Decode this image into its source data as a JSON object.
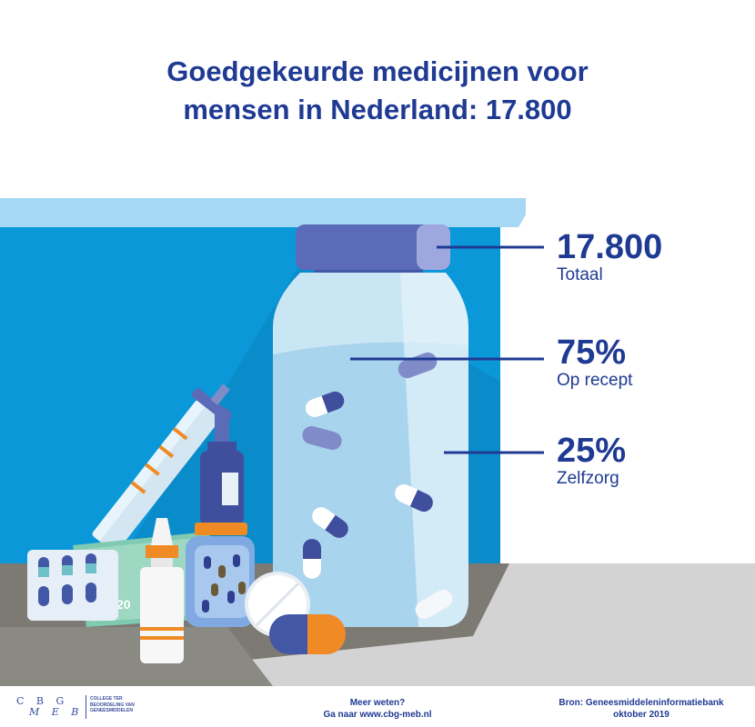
{
  "title": {
    "line1": "Goedgekeurde medicijnen voor",
    "line2": "mensen in Nederland: 17.800"
  },
  "stats": [
    {
      "value": "17.800",
      "label": "Totaal"
    },
    {
      "value": "75%",
      "label": "Op recept"
    },
    {
      "value": "25%",
      "label": "Zelfzorg"
    }
  ],
  "colors": {
    "accent": "#1f3a93",
    "wall": "#0a98d8",
    "shelf": "#a6d8f4",
    "floor": "#d4d4d4",
    "orange": "#f08a24"
  },
  "illustration": {
    "blister_label": "20"
  },
  "footer": {
    "logo": {
      "letters_top": "C B G",
      "letters_bottom": "M E B",
      "org_line1": "COLLEGE TER",
      "org_line2": "BEOORDELING VAN",
      "org_line3": "GENEESMIDDELEN"
    },
    "more_line1": "Meer weten?",
    "more_line2": "Ga naar www.cbg-meb.nl",
    "source_line1": "Bron: Geneesmiddeleninformatiebank",
    "source_line2": "oktober 2019"
  }
}
